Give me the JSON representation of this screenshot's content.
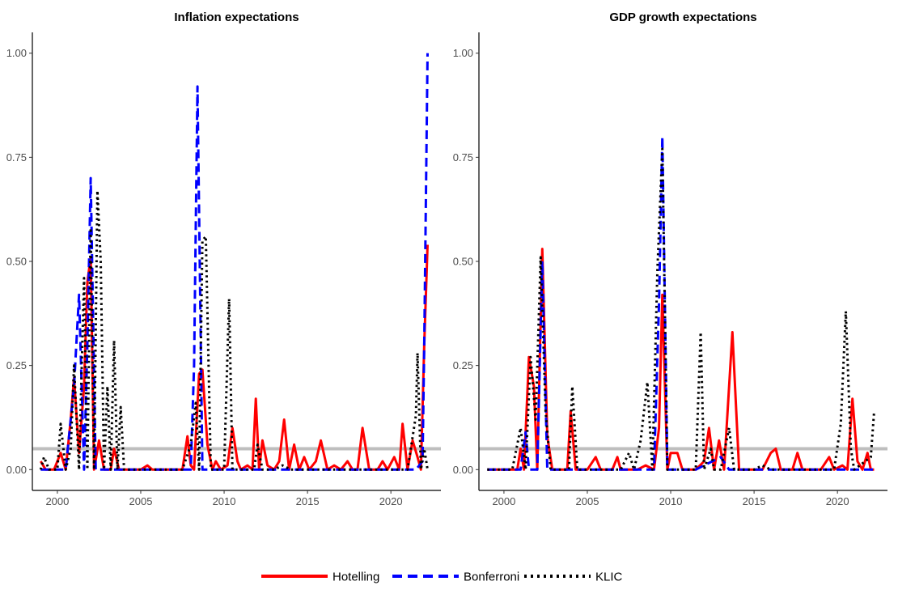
{
  "colors": {
    "hotelling": "#ff0000",
    "bonferroni": "#0000ff",
    "klic": "#000000",
    "reference": "#bebebe"
  },
  "reference_line": 0.05,
  "legend": {
    "placement": "bottom",
    "items": [
      "Hotelling",
      "Bonferroni",
      "KLIC"
    ]
  },
  "chart_data": [
    {
      "type": "line",
      "title": "Inflation expectations",
      "xlabel": "",
      "ylabel": "",
      "xlim": [
        1998.5,
        2023.0
      ],
      "ylim": [
        -0.05,
        1.05
      ],
      "x_ticks": [
        2000,
        2005,
        2010,
        2015,
        2020
      ],
      "y_ticks": [
        0.0,
        0.25,
        0.5,
        0.75,
        1.0
      ],
      "y_tick_labels": [
        "0.00",
        "0.25",
        "0.50",
        "0.75",
        "1.00"
      ],
      "grid": false,
      "series": [
        {
          "name": "Hotelling",
          "style": "solid",
          "points": [
            [
              1999.0,
              0.02
            ],
            [
              1999.3,
              0.0
            ],
            [
              1999.8,
              0.0
            ],
            [
              2000.2,
              0.04
            ],
            [
              2000.5,
              0.0
            ],
            [
              2000.8,
              0.12
            ],
            [
              2001.0,
              0.22
            ],
            [
              2001.3,
              0.04
            ],
            [
              2001.6,
              0.2
            ],
            [
              2001.8,
              0.45
            ],
            [
              2002.0,
              0.51
            ],
            [
              2002.2,
              0.0
            ],
            [
              2002.5,
              0.07
            ],
            [
              2002.8,
              0.0
            ],
            [
              2003.2,
              0.0
            ],
            [
              2003.4,
              0.05
            ],
            [
              2003.7,
              0.0
            ],
            [
              2005.0,
              0.0
            ],
            [
              2005.4,
              0.01
            ],
            [
              2005.7,
              0.0
            ],
            [
              2007.5,
              0.0
            ],
            [
              2007.8,
              0.08
            ],
            [
              2008.0,
              0.01
            ],
            [
              2008.2,
              0.0
            ],
            [
              2008.5,
              0.23
            ],
            [
              2008.7,
              0.24
            ],
            [
              2009.0,
              0.06
            ],
            [
              2009.3,
              0.0
            ],
            [
              2009.5,
              0.02
            ],
            [
              2009.8,
              0.0
            ],
            [
              2010.2,
              0.01
            ],
            [
              2010.5,
              0.1
            ],
            [
              2010.8,
              0.02
            ],
            [
              2011.0,
              0.0
            ],
            [
              2011.4,
              0.01
            ],
            [
              2011.7,
              0.0
            ],
            [
              2011.9,
              0.17
            ],
            [
              2012.1,
              0.0
            ],
            [
              2012.3,
              0.07
            ],
            [
              2012.6,
              0.01
            ],
            [
              2013.0,
              0.0
            ],
            [
              2013.3,
              0.02
            ],
            [
              2013.6,
              0.12
            ],
            [
              2013.9,
              0.0
            ],
            [
              2014.2,
              0.06
            ],
            [
              2014.5,
              0.0
            ],
            [
              2014.8,
              0.03
            ],
            [
              2015.1,
              0.0
            ],
            [
              2015.5,
              0.02
            ],
            [
              2015.8,
              0.07
            ],
            [
              2016.2,
              0.0
            ],
            [
              2016.6,
              0.01
            ],
            [
              2017.0,
              0.0
            ],
            [
              2017.4,
              0.02
            ],
            [
              2017.7,
              0.0
            ],
            [
              2018.0,
              0.0
            ],
            [
              2018.3,
              0.1
            ],
            [
              2018.7,
              0.0
            ],
            [
              2019.2,
              0.0
            ],
            [
              2019.5,
              0.02
            ],
            [
              2019.8,
              0.0
            ],
            [
              2020.2,
              0.03
            ],
            [
              2020.5,
              0.0
            ],
            [
              2020.7,
              0.11
            ],
            [
              2021.0,
              0.0
            ],
            [
              2021.3,
              0.07
            ],
            [
              2021.6,
              0.03
            ],
            [
              2021.8,
              0.0
            ],
            [
              2022.0,
              0.3
            ],
            [
              2022.2,
              0.54
            ]
          ]
        },
        {
          "name": "Bonferroni",
          "style": "dashed",
          "points": [
            [
              1999.0,
              0.0
            ],
            [
              2000.5,
              0.0
            ],
            [
              2001.0,
              0.2
            ],
            [
              2001.3,
              0.42
            ],
            [
              2001.6,
              0.0
            ],
            [
              2001.8,
              0.3
            ],
            [
              2002.0,
              0.7
            ],
            [
              2002.3,
              0.0
            ],
            [
              2003.0,
              0.0
            ],
            [
              2008.0,
              0.0
            ],
            [
              2008.2,
              0.25
            ],
            [
              2008.4,
              0.92
            ],
            [
              2008.7,
              0.0
            ],
            [
              2021.5,
              0.0
            ],
            [
              2021.9,
              0.02
            ],
            [
              2022.0,
              0.3
            ],
            [
              2022.2,
              1.0
            ]
          ]
        },
        {
          "name": "KLIC",
          "style": "dotted",
          "points": [
            [
              1999.0,
              0.0
            ],
            [
              1999.2,
              0.03
            ],
            [
              1999.5,
              0.0
            ],
            [
              2000.0,
              0.0
            ],
            [
              2000.2,
              0.11
            ],
            [
              2000.5,
              0.0
            ],
            [
              2000.8,
              0.05
            ],
            [
              2001.0,
              0.25
            ],
            [
              2001.3,
              0.0
            ],
            [
              2001.6,
              0.46
            ],
            [
              2001.8,
              0.0
            ],
            [
              2002.0,
              0.58
            ],
            [
              2002.2,
              0.0
            ],
            [
              2002.4,
              0.67
            ],
            [
              2002.6,
              0.5
            ],
            [
              2002.8,
              0.0
            ],
            [
              2003.0,
              0.2
            ],
            [
              2003.2,
              0.0
            ],
            [
              2003.4,
              0.31
            ],
            [
              2003.6,
              0.0
            ],
            [
              2003.8,
              0.15
            ],
            [
              2004.0,
              0.0
            ],
            [
              2007.5,
              0.0
            ],
            [
              2008.0,
              0.06
            ],
            [
              2008.3,
              0.16
            ],
            [
              2008.5,
              0.0
            ],
            [
              2008.7,
              0.55
            ],
            [
              2008.9,
              0.56
            ],
            [
              2009.2,
              0.0
            ],
            [
              2010.0,
              0.0
            ],
            [
              2010.3,
              0.41
            ],
            [
              2010.5,
              0.0
            ],
            [
              2011.0,
              0.0
            ],
            [
              2011.8,
              0.0
            ],
            [
              2012.0,
              0.06
            ],
            [
              2012.3,
              0.0
            ],
            [
              2013.0,
              0.0
            ],
            [
              2013.5,
              0.01
            ],
            [
              2014.0,
              0.0
            ],
            [
              2021.0,
              0.0
            ],
            [
              2021.5,
              0.13
            ],
            [
              2021.6,
              0.28
            ],
            [
              2021.8,
              0.0
            ],
            [
              2022.0,
              0.05
            ],
            [
              2022.2,
              0.0
            ]
          ]
        }
      ]
    },
    {
      "type": "line",
      "title": "GDP growth expectations",
      "xlabel": "",
      "ylabel": "",
      "xlim": [
        1998.5,
        2023.0
      ],
      "ylim": [
        -0.05,
        1.05
      ],
      "x_ticks": [
        2000,
        2005,
        2010,
        2015,
        2020
      ],
      "y_ticks": [
        0.0,
        0.25,
        0.5,
        0.75,
        1.0
      ],
      "y_tick_labels": [
        "0.00",
        "0.25",
        "0.50",
        "0.75",
        "1.00"
      ],
      "grid": false,
      "series": [
        {
          "name": "Hotelling",
          "style": "solid",
          "points": [
            [
              1999.0,
              0.0
            ],
            [
              2000.8,
              0.0
            ],
            [
              2001.0,
              0.05
            ],
            [
              2001.2,
              0.0
            ],
            [
              2001.5,
              0.27
            ],
            [
              2001.8,
              0.2
            ],
            [
              2002.0,
              0.0
            ],
            [
              2002.3,
              0.53
            ],
            [
              2002.6,
              0.08
            ],
            [
              2002.9,
              0.0
            ],
            [
              2003.8,
              0.0
            ],
            [
              2004.0,
              0.14
            ],
            [
              2004.3,
              0.0
            ],
            [
              2005.0,
              0.0
            ],
            [
              2005.5,
              0.03
            ],
            [
              2005.8,
              0.0
            ],
            [
              2006.5,
              0.0
            ],
            [
              2006.8,
              0.03
            ],
            [
              2007.0,
              0.0
            ],
            [
              2008.0,
              0.0
            ],
            [
              2008.5,
              0.01
            ],
            [
              2009.0,
              0.0
            ],
            [
              2009.3,
              0.1
            ],
            [
              2009.5,
              0.42
            ],
            [
              2009.8,
              0.0
            ],
            [
              2010.0,
              0.04
            ],
            [
              2010.4,
              0.04
            ],
            [
              2010.7,
              0.0
            ],
            [
              2011.5,
              0.0
            ],
            [
              2012.0,
              0.02
            ],
            [
              2012.3,
              0.1
            ],
            [
              2012.6,
              0.0
            ],
            [
              2012.9,
              0.07
            ],
            [
              2013.2,
              0.0
            ],
            [
              2013.7,
              0.33
            ],
            [
              2014.1,
              0.0
            ],
            [
              2015.5,
              0.0
            ],
            [
              2016.0,
              0.04
            ],
            [
              2016.3,
              0.05
            ],
            [
              2016.6,
              0.0
            ],
            [
              2017.3,
              0.0
            ],
            [
              2017.6,
              0.04
            ],
            [
              2017.9,
              0.0
            ],
            [
              2019.0,
              0.0
            ],
            [
              2019.5,
              0.03
            ],
            [
              2019.8,
              0.0
            ],
            [
              2020.3,
              0.01
            ],
            [
              2020.6,
              0.0
            ],
            [
              2020.9,
              0.17
            ],
            [
              2021.2,
              0.02
            ],
            [
              2021.5,
              0.0
            ],
            [
              2021.8,
              0.04
            ],
            [
              2022.0,
              0.0
            ],
            [
              2022.2,
              0.0
            ]
          ]
        },
        {
          "name": "Bonferroni",
          "style": "dashed",
          "points": [
            [
              1999.0,
              0.0
            ],
            [
              2001.0,
              0.0
            ],
            [
              2001.3,
              0.09
            ],
            [
              2001.5,
              0.0
            ],
            [
              2002.0,
              0.0
            ],
            [
              2002.3,
              0.5
            ],
            [
              2002.6,
              0.0
            ],
            [
              2009.0,
              0.0
            ],
            [
              2009.3,
              0.4
            ],
            [
              2009.5,
              0.8
            ],
            [
              2009.8,
              0.0
            ],
            [
              2011.5,
              0.0
            ],
            [
              2012.0,
              0.01
            ],
            [
              2013.0,
              0.03
            ],
            [
              2013.5,
              0.0
            ],
            [
              2022.2,
              0.0
            ]
          ]
        },
        {
          "name": "KLIC",
          "style": "dotted",
          "points": [
            [
              1999.0,
              0.0
            ],
            [
              2000.5,
              0.0
            ],
            [
              2001.0,
              0.1
            ],
            [
              2001.3,
              0.0
            ],
            [
              2001.6,
              0.27
            ],
            [
              2001.9,
              0.12
            ],
            [
              2002.2,
              0.51
            ],
            [
              2002.5,
              0.14
            ],
            [
              2002.8,
              0.0
            ],
            [
              2003.9,
              0.0
            ],
            [
              2004.1,
              0.2
            ],
            [
              2004.4,
              0.0
            ],
            [
              2007.0,
              0.0
            ],
            [
              2007.5,
              0.04
            ],
            [
              2007.8,
              0.0
            ],
            [
              2008.2,
              0.07
            ],
            [
              2008.6,
              0.21
            ],
            [
              2008.9,
              0.0
            ],
            [
              2009.2,
              0.48
            ],
            [
              2009.5,
              0.77
            ],
            [
              2009.8,
              0.0
            ],
            [
              2011.5,
              0.0
            ],
            [
              2011.8,
              0.33
            ],
            [
              2012.0,
              0.0
            ],
            [
              2012.4,
              0.05
            ],
            [
              2012.6,
              0.0
            ],
            [
              2013.0,
              0.0
            ],
            [
              2013.5,
              0.1
            ],
            [
              2013.8,
              0.0
            ],
            [
              2015.0,
              0.0
            ],
            [
              2015.5,
              0.01
            ],
            [
              2016.0,
              0.0
            ],
            [
              2019.8,
              0.0
            ],
            [
              2020.2,
              0.11
            ],
            [
              2020.5,
              0.38
            ],
            [
              2020.8,
              0.05
            ],
            [
              2021.0,
              0.0
            ],
            [
              2022.0,
              0.03
            ],
            [
              2022.2,
              0.14
            ]
          ]
        }
      ]
    }
  ]
}
